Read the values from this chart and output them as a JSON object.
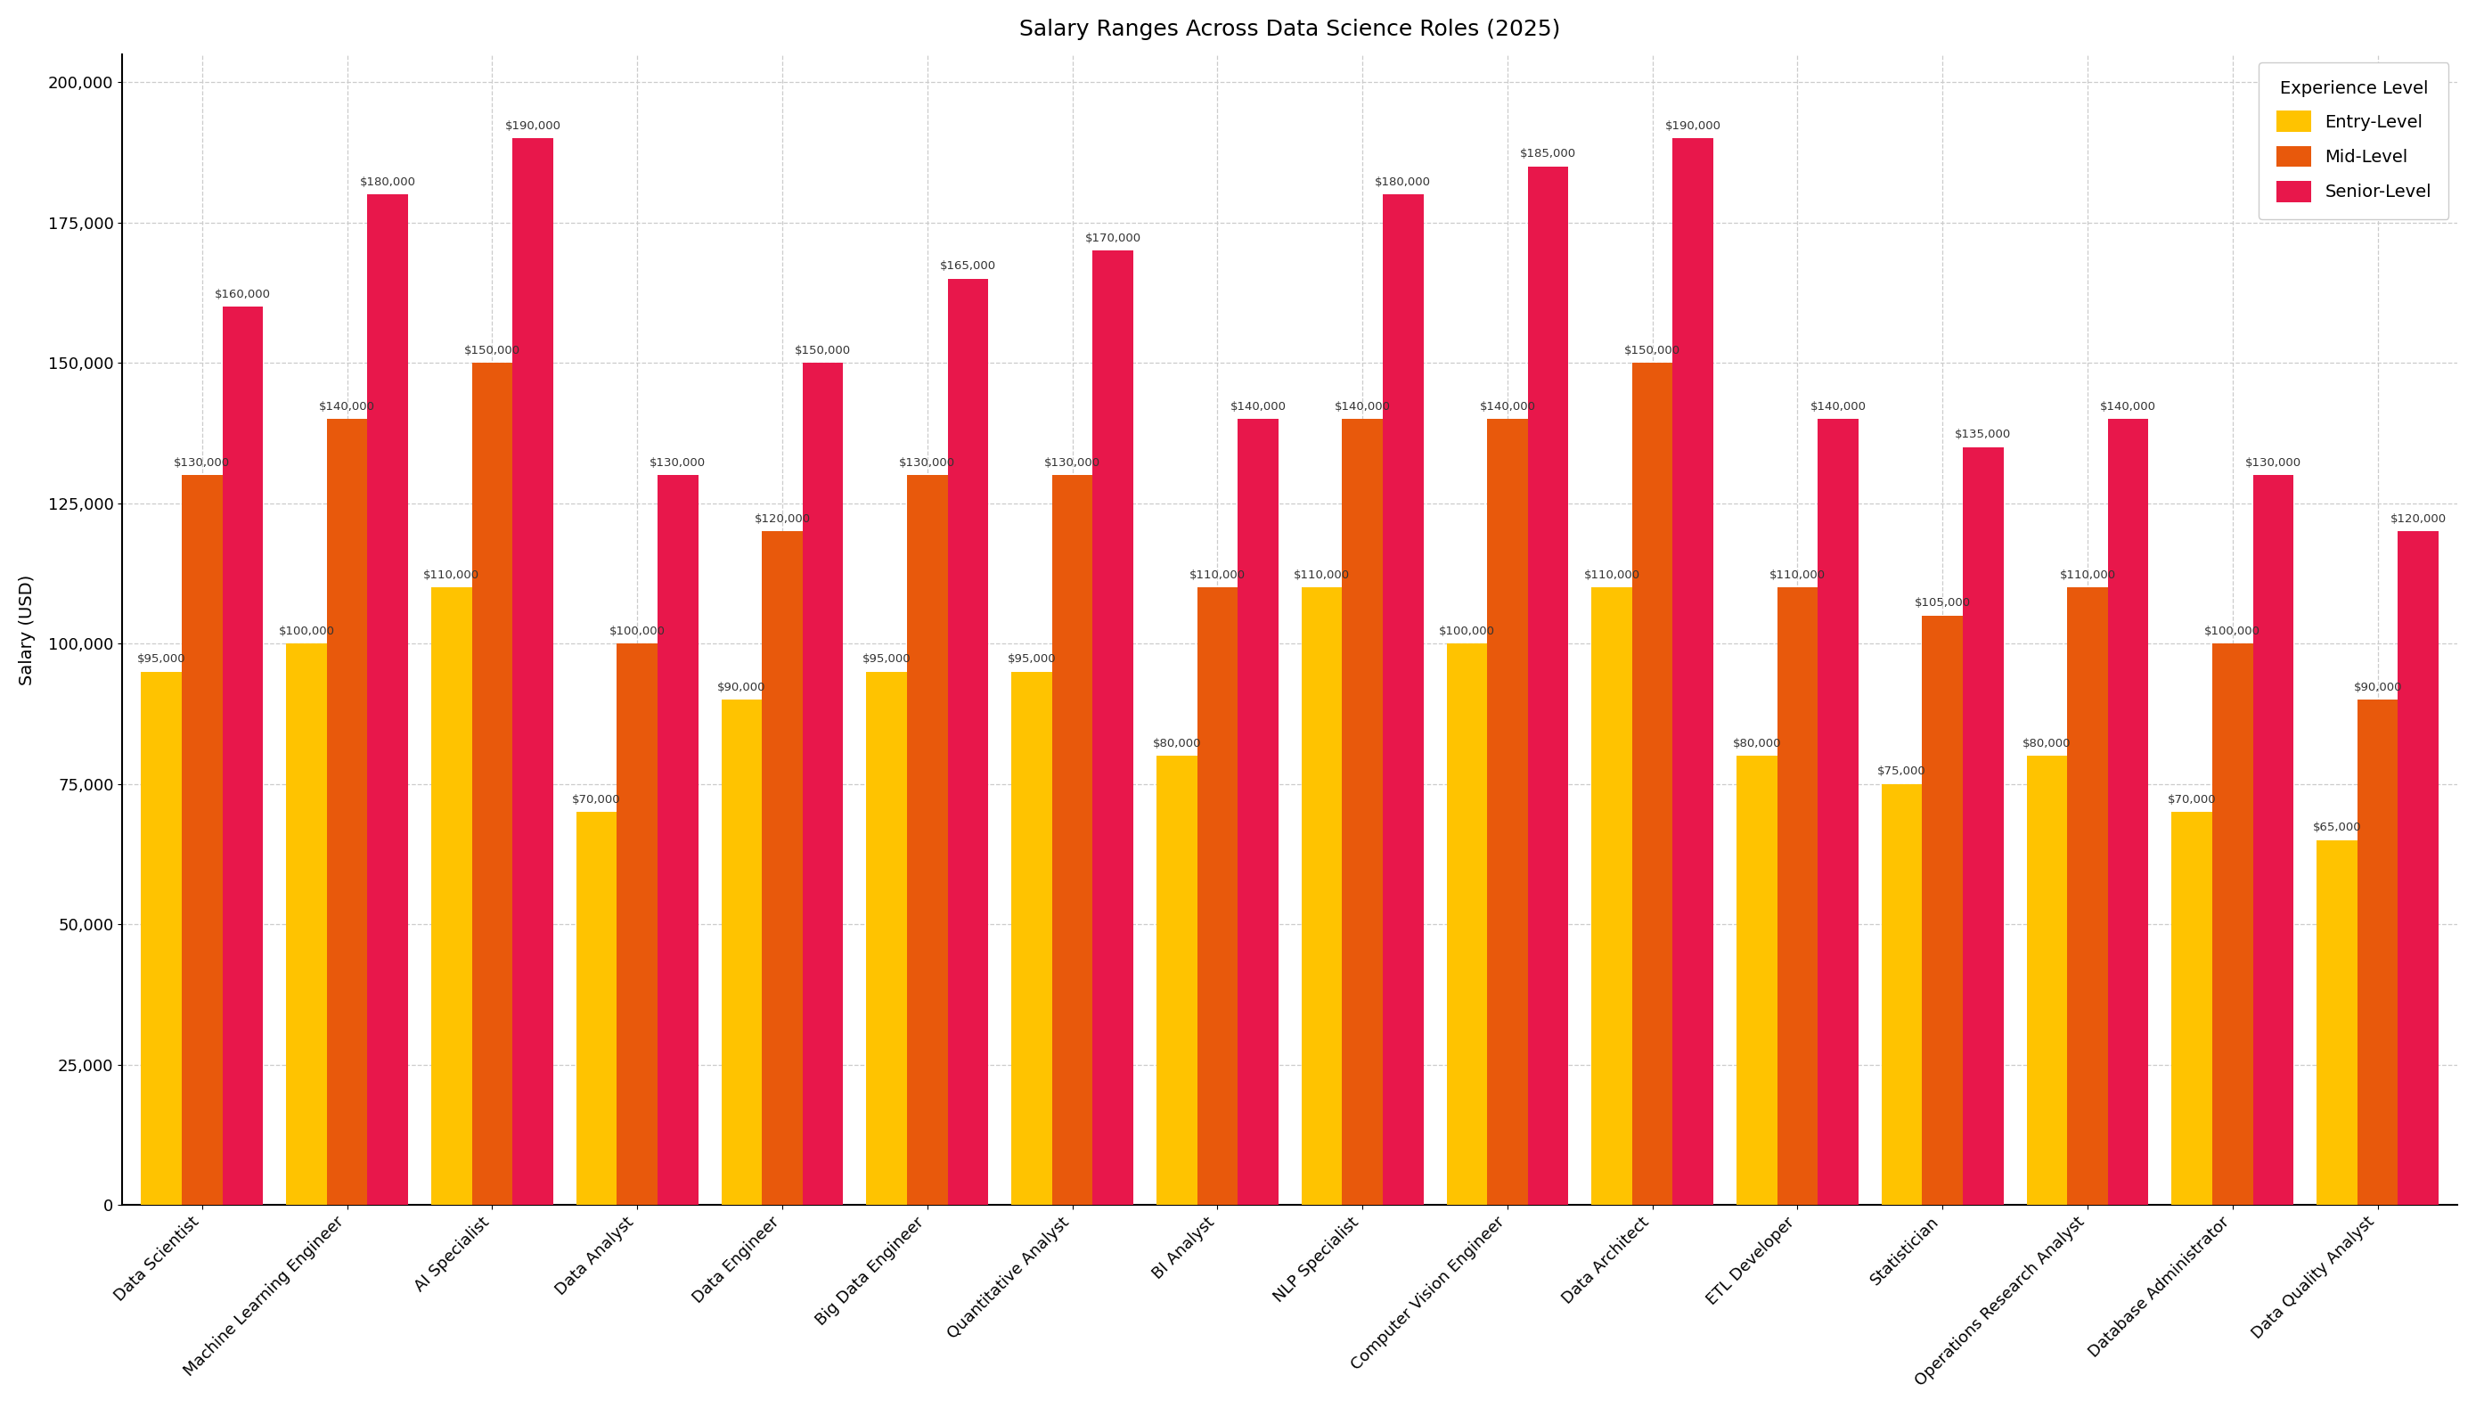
{
  "title": "Salary Ranges Across Data Science Roles (2025)",
  "ylabel": "Salary (USD)",
  "categories": [
    "Data Scientist",
    "Machine Learning Engineer",
    "AI Specialist",
    "Data Analyst",
    "Data Engineer",
    "Big Data Engineer",
    "Quantitative Analyst",
    "BI Analyst",
    "NLP Specialist",
    "Computer Vision Engineer",
    "Data Architect",
    "ETL Developer",
    "Statistician",
    "Operations Research Analyst",
    "Database Administrator",
    "Data Quality Analyst"
  ],
  "entry_level": [
    95000,
    100000,
    110000,
    70000,
    90000,
    95000,
    95000,
    80000,
    110000,
    100000,
    110000,
    80000,
    75000,
    80000,
    70000,
    65000
  ],
  "mid_level": [
    130000,
    140000,
    150000,
    100000,
    120000,
    130000,
    130000,
    110000,
    140000,
    140000,
    150000,
    110000,
    105000,
    110000,
    100000,
    90000
  ],
  "senior_level": [
    160000,
    180000,
    190000,
    130000,
    150000,
    165000,
    170000,
    140000,
    180000,
    185000,
    190000,
    140000,
    135000,
    140000,
    130000,
    120000
  ],
  "entry_color": "#FFC300",
  "mid_color": "#E8590C",
  "senior_color": "#E8174B",
  "bar_width": 0.28,
  "ylim": [
    0,
    205000
  ],
  "yticks": [
    0,
    25000,
    50000,
    75000,
    100000,
    125000,
    150000,
    175000,
    200000
  ],
  "title_fontsize": 18,
  "label_fontsize": 14,
  "tick_fontsize": 13,
  "annotation_fontsize": 9.5,
  "legend_fontsize": 14,
  "background_color": "#ffffff",
  "grid_color": "#cccccc"
}
